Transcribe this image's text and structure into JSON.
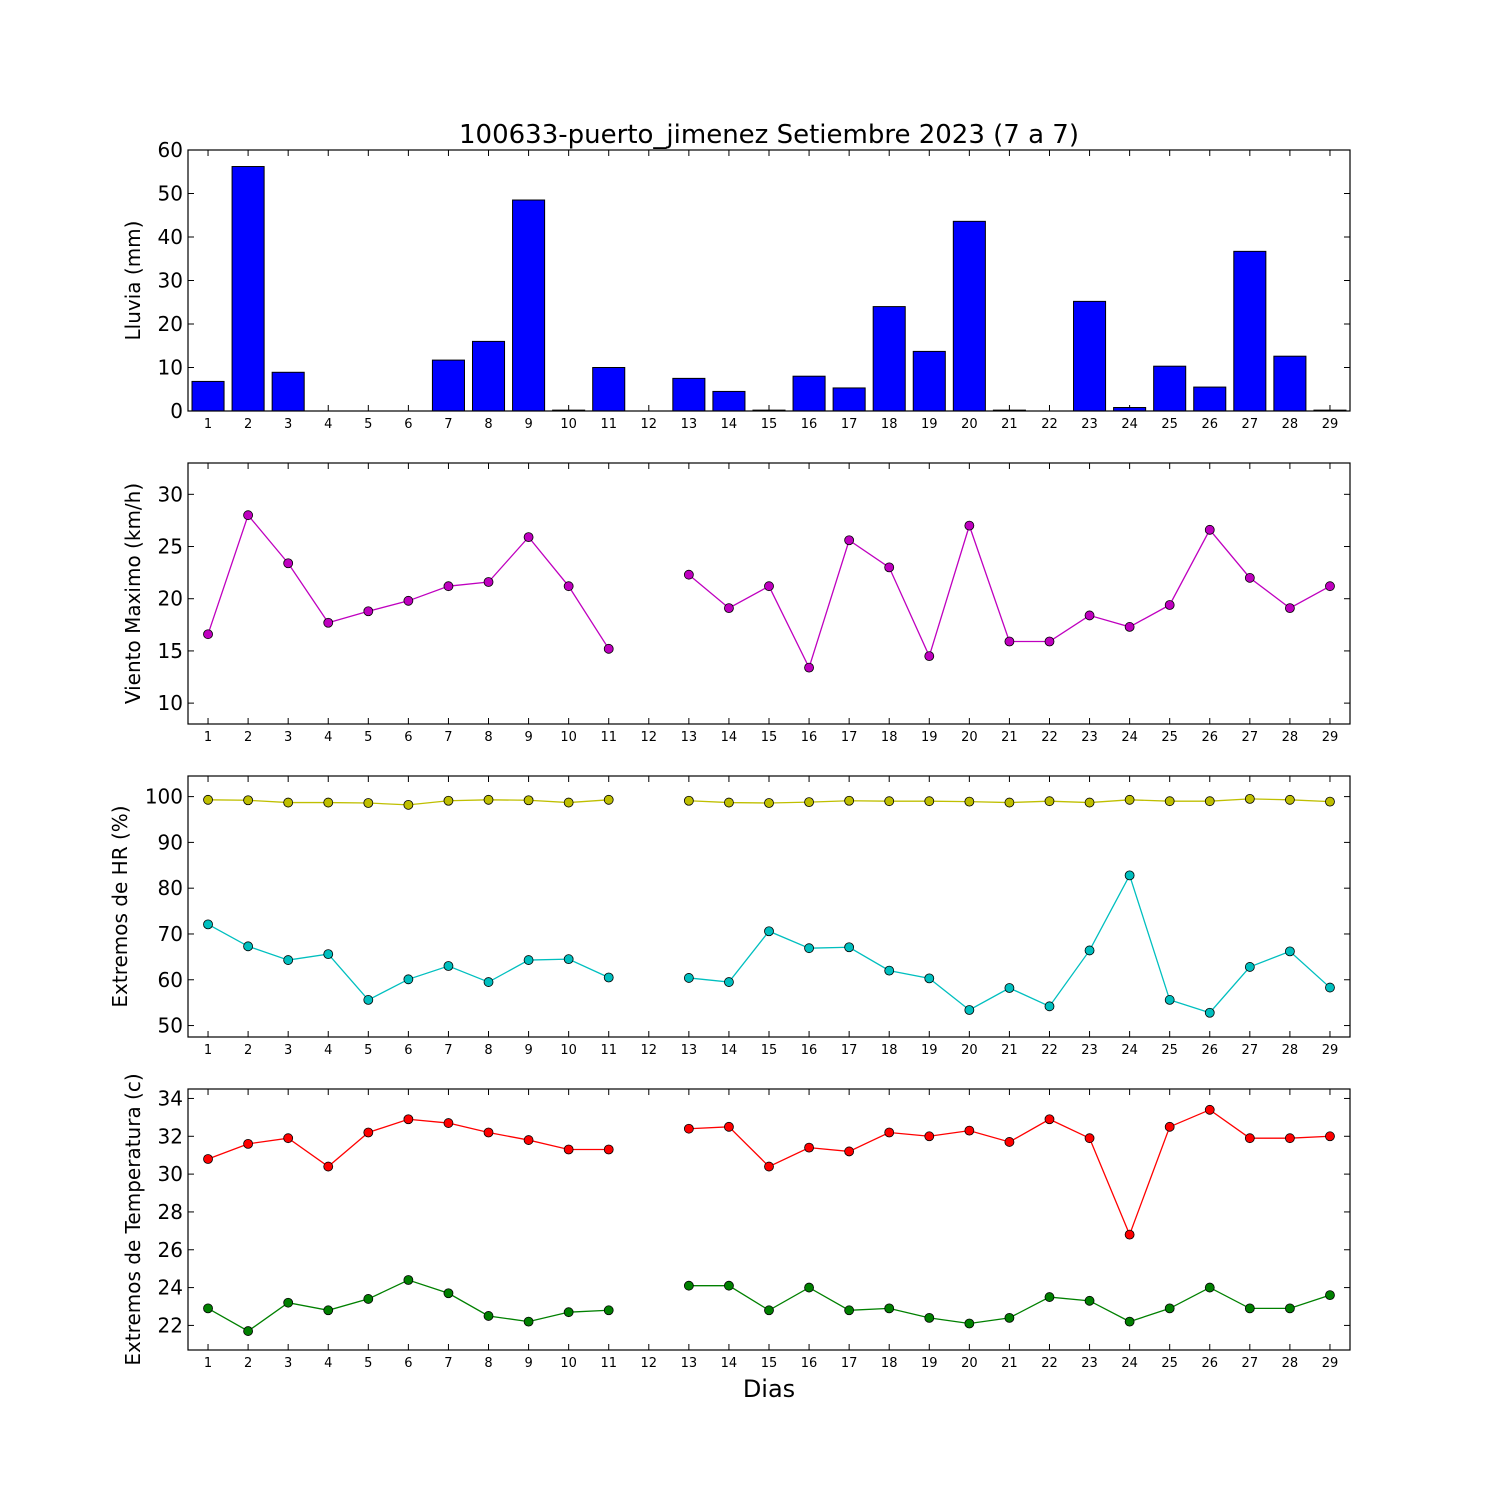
{
  "title": "100633-puerto_jimenez Setiembre 2023  (7 a 7)",
  "xlabel": "Dias",
  "chart_data": [
    {
      "type": "bar",
      "ylabel": "Lluvia (mm)",
      "ylim": [
        0,
        60
      ],
      "yticks": [
        0,
        10,
        20,
        30,
        40,
        50,
        60
      ],
      "xlim": [
        0.5,
        29.5
      ],
      "x": [
        1,
        2,
        3,
        4,
        5,
        6,
        7,
        8,
        9,
        10,
        11,
        12,
        13,
        14,
        15,
        16,
        17,
        18,
        19,
        20,
        21,
        22,
        23,
        24,
        25,
        26,
        27,
        28,
        29
      ],
      "series": [
        {
          "color": "#0000ff",
          "values": [
            6.8,
            56.2,
            8.9,
            0,
            0,
            0,
            11.7,
            16.0,
            48.5,
            0.2,
            10.0,
            0,
            7.5,
            4.5,
            0.2,
            8.0,
            5.3,
            24.0,
            13.7,
            43.6,
            0.2,
            0,
            25.2,
            0.8,
            10.3,
            5.5,
            36.7,
            12.6,
            0.2
          ]
        }
      ]
    },
    {
      "type": "line",
      "ylabel": "Viento Maximo (km/h)",
      "ylim": [
        8,
        33
      ],
      "yticks": [
        10,
        15,
        20,
        25,
        30
      ],
      "xlim": [
        0.5,
        29.5
      ],
      "x": [
        1,
        2,
        3,
        4,
        5,
        6,
        7,
        8,
        9,
        10,
        11,
        12,
        13,
        14,
        15,
        16,
        17,
        18,
        19,
        20,
        21,
        22,
        23,
        24,
        25,
        26,
        27,
        28,
        29
      ],
      "series": [
        {
          "color": "#bf00bf",
          "values": [
            16.6,
            28.0,
            23.4,
            17.7,
            18.8,
            19.8,
            21.2,
            21.6,
            25.9,
            21.2,
            15.2,
            null,
            22.3,
            19.1,
            21.2,
            13.4,
            25.6,
            23.0,
            14.5,
            27.0,
            15.9,
            15.9,
            18.4,
            17.3,
            19.4,
            26.6,
            22.0,
            19.1,
            21.2
          ]
        }
      ]
    },
    {
      "type": "line",
      "ylabel": "Extremos de HR (%)",
      "ylim": [
        47.5,
        104.5
      ],
      "yticks": [
        50,
        60,
        70,
        80,
        90,
        100
      ],
      "xlim": [
        0.5,
        29.5
      ],
      "x": [
        1,
        2,
        3,
        4,
        5,
        6,
        7,
        8,
        9,
        10,
        11,
        12,
        13,
        14,
        15,
        16,
        17,
        18,
        19,
        20,
        21,
        22,
        23,
        24,
        25,
        26,
        27,
        28,
        29
      ],
      "series": [
        {
          "color": "#bfbf00",
          "values": [
            99.3,
            99.2,
            98.7,
            98.7,
            98.6,
            98.2,
            99.1,
            99.3,
            99.2,
            98.7,
            99.3,
            null,
            99.1,
            98.7,
            98.6,
            98.8,
            99.1,
            99.0,
            99.0,
            98.9,
            98.7,
            99.0,
            98.7,
            99.3,
            99.0,
            99.0,
            99.5,
            99.3,
            98.9
          ]
        },
        {
          "color": "#00bfbf",
          "values": [
            72.1,
            67.3,
            64.3,
            65.6,
            55.6,
            60.1,
            63.0,
            59.5,
            64.3,
            64.5,
            60.5,
            null,
            60.4,
            59.5,
            70.6,
            66.9,
            67.1,
            62.0,
            60.3,
            53.4,
            58.2,
            54.2,
            66.4,
            82.8,
            55.6,
            52.8,
            62.8,
            66.2,
            58.3
          ]
        }
      ]
    },
    {
      "type": "line",
      "ylabel": "Extremos de Temperatura (c)",
      "ylim": [
        20.7,
        34.5
      ],
      "yticks": [
        22,
        24,
        26,
        28,
        30,
        32,
        34
      ],
      "xlim": [
        0.5,
        29.5
      ],
      "x": [
        1,
        2,
        3,
        4,
        5,
        6,
        7,
        8,
        9,
        10,
        11,
        12,
        13,
        14,
        15,
        16,
        17,
        18,
        19,
        20,
        21,
        22,
        23,
        24,
        25,
        26,
        27,
        28,
        29
      ],
      "series": [
        {
          "color": "#ff0000",
          "values": [
            30.8,
            31.6,
            31.9,
            30.4,
            32.2,
            32.9,
            32.7,
            32.2,
            31.8,
            31.3,
            31.3,
            null,
            32.4,
            32.5,
            30.4,
            31.4,
            31.2,
            32.2,
            32.0,
            32.3,
            31.7,
            32.9,
            31.9,
            26.8,
            32.5,
            33.4,
            31.9,
            31.9,
            32.0
          ]
        },
        {
          "color": "#008000",
          "values": [
            22.9,
            21.7,
            23.2,
            22.8,
            23.4,
            24.4,
            23.7,
            22.5,
            22.2,
            22.7,
            22.8,
            null,
            24.1,
            24.1,
            22.8,
            24.0,
            22.8,
            22.9,
            22.4,
            22.1,
            22.4,
            23.5,
            23.3,
            22.2,
            22.9,
            24.0,
            22.9,
            22.9,
            23.6
          ]
        }
      ]
    }
  ]
}
